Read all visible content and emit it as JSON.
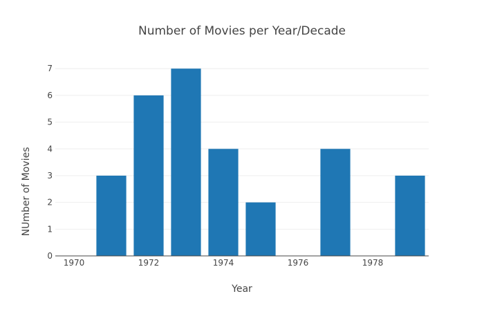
{
  "chart_data": {
    "type": "bar",
    "title": "Number of Movies per Year/Decade",
    "xlabel": "Year",
    "ylabel": "NUmber of Movies",
    "x": [
      1971,
      1972,
      1973,
      1974,
      1975,
      1977,
      1979
    ],
    "values": [
      3,
      6,
      7,
      4,
      2,
      4,
      3
    ],
    "xlim": [
      1969.5,
      1979.5
    ],
    "ylim": [
      0,
      7.6
    ],
    "x_ticks": [
      "1970",
      "1972",
      "1974",
      "1976",
      "1978"
    ],
    "y_ticks": [
      "0",
      "1",
      "2",
      "3",
      "4",
      "5",
      "6",
      "7"
    ],
    "bar_color": "#1f77b4",
    "grid": true
  }
}
